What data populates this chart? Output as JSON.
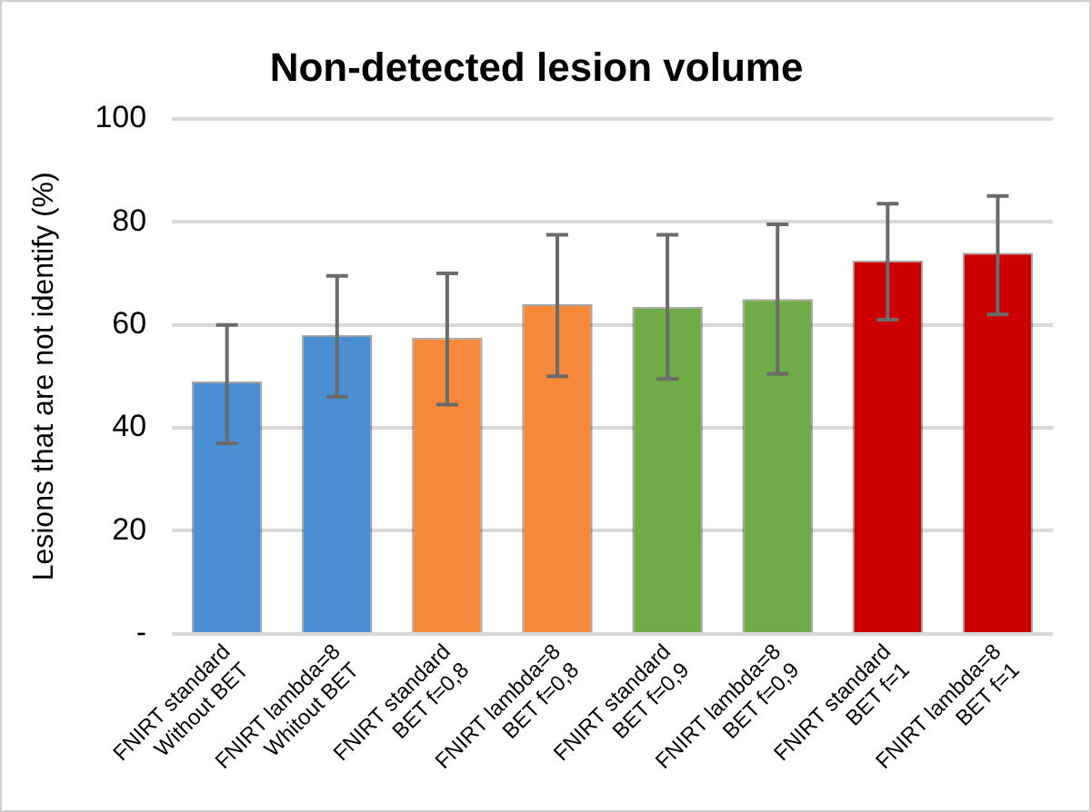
{
  "chart_data": {
    "type": "bar",
    "title": "Non-detected lesion volume",
    "ylabel": "Lesions that are not identify (%)",
    "categories": [
      "FNIRT standard\nWithout BET",
      "FNIRT lambda=8\nWhitout BET",
      "FNIRT standard\nBET f=0,8",
      "FNIRT lambda=8\nBET f=0,8",
      "FNIRT standard\nBET f=0,9",
      "FNIRT lambda=8\nBET f=0,9",
      "FNIRT standard\nBET f=1",
      "FNIRT lambda=8\nBET f=1"
    ],
    "values": [
      49,
      58,
      57.5,
      64,
      63.5,
      65,
      72.5,
      74
    ],
    "colors": [
      "#4a8fd4",
      "#4a8fd4",
      "#f5883a",
      "#f5883a",
      "#6fab46",
      "#6fab46",
      "#cc0000",
      "#cc0000"
    ],
    "errors": [
      [
        37,
        60
      ],
      [
        46,
        69.5
      ],
      [
        44.5,
        70
      ],
      [
        50,
        77.5
      ],
      [
        49.5,
        77.5
      ],
      [
        50.5,
        79.5
      ],
      [
        61,
        83.5
      ],
      [
        62,
        85
      ]
    ],
    "ylim": [
      0,
      100
    ],
    "yticks": [
      {
        "value": 0,
        "label": "-"
      },
      20,
      40,
      60,
      80,
      100
    ],
    "grid": "y",
    "legend": false
  }
}
